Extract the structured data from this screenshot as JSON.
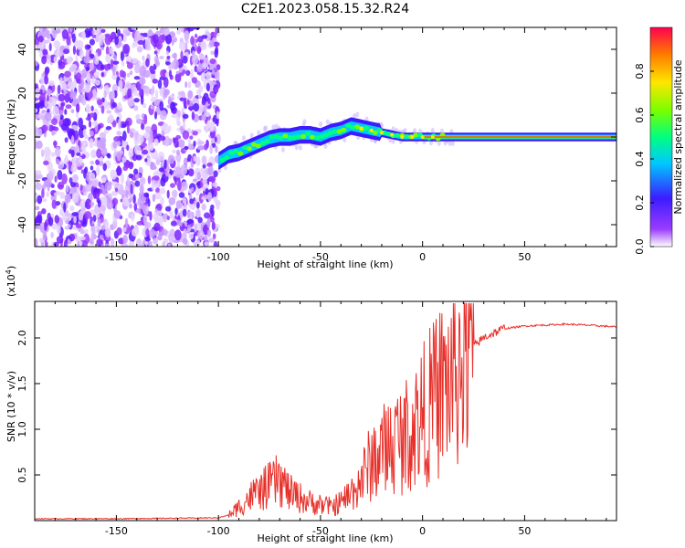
{
  "figure_title": "C2E1.2023.058.15.32.R24",
  "chart_data": [
    {
      "type": "heatmap",
      "title": "C2E1.2023.058.15.32.R24",
      "xlabel": "Height of straight line (km)",
      "ylabel": "Frequency (Hz)",
      "xlim": [
        -190,
        95
      ],
      "ylim": [
        -50,
        50
      ],
      "x_ticks": [
        -150,
        -100,
        -50,
        0,
        50
      ],
      "y_ticks": [
        -40,
        -20,
        0,
        20,
        40
      ],
      "noise_region": {
        "x_range": [
          -190,
          -100
        ],
        "freq_range": [
          -50,
          50
        ]
      },
      "signal_trace": {
        "x": [
          -100,
          -95,
          -90,
          -85,
          -80,
          -75,
          -70,
          -65,
          -60,
          -55,
          -50,
          -45,
          -40,
          -35,
          -30,
          -25,
          -20,
          -15,
          -10,
          -5,
          0,
          5,
          10,
          20,
          30,
          40,
          50,
          60,
          70,
          80,
          95
        ],
        "frequency": [
          -11,
          -8,
          -7,
          -5,
          -3,
          -1,
          0,
          0,
          1,
          1,
          0,
          2,
          3,
          5,
          4,
          3,
          2,
          1,
          0,
          0,
          0,
          0,
          0,
          0,
          0,
          0,
          0,
          0,
          0,
          0,
          0
        ]
      },
      "colorbar": {
        "label": "Normalized spectral amplitude",
        "range": [
          0.0,
          1.0
        ],
        "ticks": [
          0.0,
          0.2,
          0.4,
          0.6,
          0.8
        ],
        "colormap": [
          "#ffffff",
          "#9a3cff",
          "#3c1cff",
          "#00c8ff",
          "#00ff80",
          "#78ff00",
          "#ffe600",
          "#ff7800",
          "#ff0050"
        ]
      }
    },
    {
      "type": "line",
      "xlabel": "Height of straight line (km)",
      "ylabel": "SNR (10 * v/v)",
      "y_multiplier": "(x10",
      "y_multiplier_exp": "4",
      "y_multiplier_close": ")",
      "xlim": [
        -190,
        95
      ],
      "ylim": [
        0,
        2.4
      ],
      "x_ticks": [
        -150,
        -100,
        -50,
        0,
        50
      ],
      "y_ticks": [
        0.5,
        1.0,
        1.5,
        2.0
      ],
      "color": "#e8302a",
      "series": [
        {
          "name": "SNR",
          "x": [
            -190,
            -150,
            -100,
            -95,
            -90,
            -85,
            -80,
            -75,
            -70,
            -65,
            -60,
            -55,
            -50,
            -45,
            -40,
            -35,
            -30,
            -25,
            -20,
            -15,
            -10,
            -5,
            0,
            5,
            10,
            15,
            20,
            25,
            30,
            40,
            50,
            60,
            70,
            80,
            95
          ],
          "y": [
            0.02,
            0.02,
            0.03,
            0.06,
            0.15,
            0.25,
            0.32,
            0.38,
            0.45,
            0.3,
            0.25,
            0.2,
            0.18,
            0.15,
            0.2,
            0.3,
            0.45,
            0.65,
            0.75,
            0.85,
            0.9,
            1.0,
            1.15,
            1.3,
            1.45,
            1.6,
            1.8,
            1.9,
            2.0,
            2.1,
            2.13,
            2.14,
            2.15,
            2.14,
            2.12
          ]
        }
      ]
    }
  ]
}
